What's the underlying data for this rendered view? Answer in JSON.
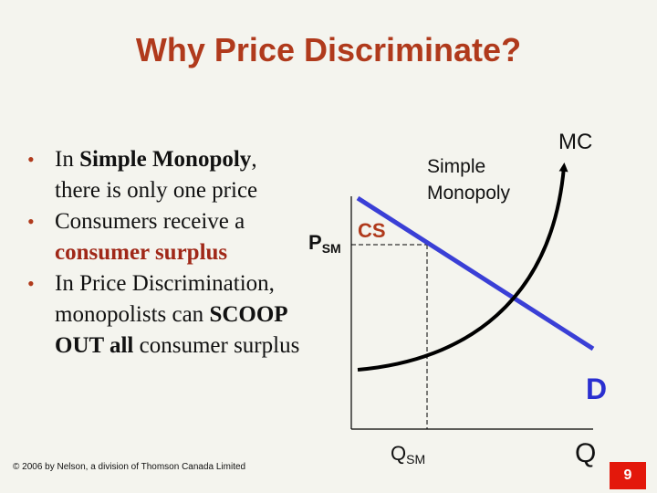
{
  "slide": {
    "title": "Why Price Discriminate?",
    "page_number": "9",
    "footer": "© 2006 by Nelson, a division of Thomson Canada Limited"
  },
  "bullets": [
    {
      "parts": [
        {
          "t": "In ",
          "s": "n"
        },
        {
          "t": "Simple Monopoly",
          "s": "b"
        },
        {
          "t": ", there is only one price",
          "s": "n"
        }
      ]
    },
    {
      "parts": [
        {
          "t": "Consumers receive a ",
          "s": "n"
        },
        {
          "t": "consumer surplus",
          "s": "a"
        }
      ]
    },
    {
      "parts": [
        {
          "t": "In Price Discrimination, monopolists can ",
          "s": "n"
        },
        {
          "t": "SCOOP OUT all",
          "s": "b"
        },
        {
          "t": " consumer surplus",
          "s": "n"
        }
      ]
    }
  ],
  "diagram": {
    "label_simple_monopoly_1": "Simple",
    "label_simple_monopoly_2": "Monopoly",
    "label_mc": "MC",
    "label_cs": "CS",
    "label_psm": "P",
    "label_psm_sub": "SM",
    "label_qsm": "Q",
    "label_qsm_sub": "SM",
    "label_d": "D",
    "label_q": "Q",
    "colors": {
      "demand": "#3a3fd6",
      "mc": "#000000",
      "cs_label": "#b03a1c",
      "d_label": "#2a2fd0",
      "accent": "#b03a1c"
    }
  }
}
